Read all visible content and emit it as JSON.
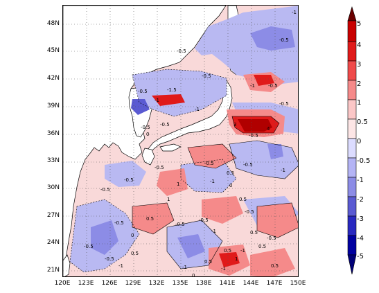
{
  "map": {
    "latitude_labels": [
      "48N",
      "45N",
      "42N",
      "39N",
      "36N",
      "33N",
      "30N",
      "27N",
      "24N",
      "21N"
    ],
    "longitude_labels": [
      "120E",
      "123E",
      "126E",
      "129E",
      "132E",
      "135E",
      "138E",
      "141E",
      "144E",
      "147E",
      "150E"
    ],
    "contour_labels": [
      "-1",
      "-0.5",
      "-0.5",
      "-1.5",
      "-1",
      "-0.5",
      "-1",
      "-0.5",
      "-0.5",
      "-0.5",
      "-1",
      "3",
      "4",
      "-0.5",
      "-0.5",
      "-0.5",
      "0",
      "-0.5",
      "-1",
      "0.5",
      "-1",
      "-0.5",
      "1",
      "0",
      "0.5",
      "-0.5",
      "-0.5",
      "-0.5",
      "-0.5",
      "1",
      "0.5",
      "-0.5",
      "-1",
      "-0.5",
      "0.5",
      "-0.5",
      "0.5",
      "-1",
      "0.5",
      "-0.5",
      "-1",
      "0.5",
      "-0.5",
      "0.5",
      "0.5",
      "-1",
      "1",
      "0",
      "-0.5",
      "-1",
      "0"
    ]
  },
  "colorbar": {
    "labels": [
      "5",
      "4",
      "3",
      "2",
      "1",
      "0.5",
      "0",
      "-0.5",
      "-1",
      "-2",
      "-3",
      "-4",
      "-5"
    ],
    "colors": [
      "#8b0000",
      "#c80000",
      "#e01a1a",
      "#ef4a4a",
      "#f58a8a",
      "#fbc7c7",
      "#fde6e6",
      "#dcdcff",
      "#b4b4f5",
      "#8c8ce6",
      "#5a5ad2",
      "#2828c0",
      "#0000a0",
      "#000078"
    ]
  }
}
